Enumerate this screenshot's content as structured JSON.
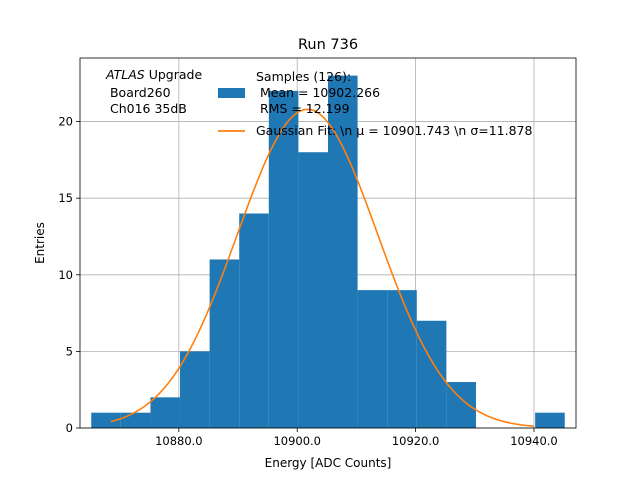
{
  "chart_data": {
    "type": "bar",
    "title": "Run 736",
    "xlabel": "Energy [ADC Counts]",
    "ylabel": "Entries",
    "xlim": [
      10863.3,
      10947.1
    ],
    "ylim": [
      0,
      24.15
    ],
    "xticks": [
      10880,
      10900,
      10920,
      10940
    ],
    "xtick_labels": [
      "10880.0",
      "10900.0",
      "10920.0",
      "10940.0"
    ],
    "yticks": [
      0,
      5,
      10,
      15,
      20
    ],
    "grid": true,
    "bin_edges": [
      10865.2,
      10870.2,
      10875.2,
      10880.2,
      10885.2,
      10890.2,
      10895.2,
      10900.2,
      10905.2,
      10910.2,
      10915.2,
      10920.2,
      10925.2,
      10930.2,
      10935.2,
      10940.2,
      10945.2
    ],
    "counts": [
      1,
      1,
      2,
      5,
      11,
      14,
      22,
      18,
      23,
      9,
      9,
      7,
      3,
      0,
      0,
      1
    ],
    "bar_color": "#1f77b4",
    "fit_color": "#ff7f0e",
    "fit": {
      "mu": 10901.743,
      "sigma": 11.878,
      "amplitude": 20.8,
      "x_range": [
        10868.5,
        10940.0
      ]
    },
    "annotation": {
      "atlas": "ATLAS",
      "rest": " Upgrade",
      "lines": [
        " Board260",
        " Ch016 35dB"
      ]
    },
    "legend": {
      "placement": "top-center",
      "entries": [
        {
          "lines": [
            "Samples (126):",
            " Mean = 10902.266",
            " RMS = 12.199"
          ]
        },
        {
          "lines": [
            "Gaussian Fit: \\n μ = 10901.743 \\n σ=11.878"
          ]
        }
      ]
    }
  }
}
